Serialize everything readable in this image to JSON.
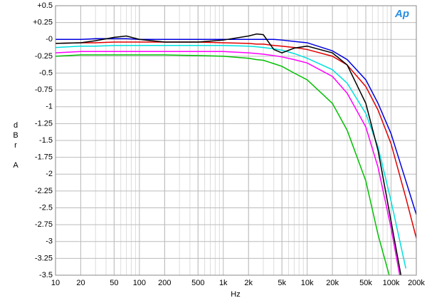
{
  "chart_data": {
    "type": "line",
    "xlabel": "Hz",
    "ylabel": "dBr A",
    "logo": "Ap",
    "xscale": "log",
    "grid": true,
    "xlim": [
      10,
      200000
    ],
    "ylim": [
      -3.5,
      0.5
    ],
    "xticks": [
      10,
      20,
      50,
      100,
      200,
      500,
      {
        "value": 1000,
        "label": "1k"
      },
      {
        "value": 2000,
        "label": "2k"
      },
      {
        "value": 5000,
        "label": "5k"
      },
      {
        "value": 10000,
        "label": "10k"
      },
      {
        "value": 20000,
        "label": "20k"
      },
      {
        "value": 50000,
        "label": "50k"
      },
      {
        "value": 100000,
        "label": "100k"
      },
      {
        "value": 200000,
        "label": "200k"
      }
    ],
    "yticks": [
      {
        "value": 0.5,
        "label": "+0.5"
      },
      {
        "value": 0.25,
        "label": "+0.25"
      },
      {
        "value": 0,
        "label": "-0"
      },
      -0.25,
      -0.5,
      -0.75,
      -1,
      -1.25,
      -1.5,
      -1.75,
      -2,
      -2.25,
      -2.5,
      -2.75,
      -3,
      -3.25,
      -3.5
    ],
    "x": [
      10,
      20,
      30,
      50,
      70,
      100,
      200,
      500,
      1000,
      2000,
      2500,
      3000,
      4000,
      5000,
      7000,
      10000,
      20000,
      30000,
      50000,
      70000,
      100000,
      150000,
      200000
    ],
    "series": [
      {
        "color": "#00c000",
        "values": [
          -0.25,
          -0.23,
          -0.23,
          -0.23,
          -0.23,
          -0.23,
          -0.23,
          -0.24,
          -0.25,
          -0.28,
          -0.3,
          -0.31,
          -0.36,
          -0.4,
          -0.5,
          -0.6,
          -0.95,
          -1.35,
          -2.1,
          -2.9,
          -3.6,
          null,
          null
        ]
      },
      {
        "color": "#ff00ff",
        "values": [
          -0.2,
          -0.18,
          -0.18,
          -0.18,
          -0.18,
          -0.18,
          -0.18,
          -0.18,
          -0.18,
          -0.2,
          -0.21,
          -0.22,
          -0.24,
          -0.26,
          -0.3,
          -0.35,
          -0.55,
          -0.8,
          -1.3,
          -1.9,
          -2.8,
          -4.0,
          null
        ]
      },
      {
        "color": "#00e0e0",
        "values": [
          -0.12,
          -0.1,
          -0.1,
          -0.09,
          -0.09,
          -0.09,
          -0.09,
          -0.09,
          -0.09,
          -0.1,
          -0.11,
          -0.12,
          -0.14,
          -0.16,
          -0.21,
          -0.28,
          -0.45,
          -0.65,
          -1.1,
          -1.6,
          -2.4,
          -3.4,
          null
        ]
      },
      {
        "color": "#e00000",
        "values": [
          -0.06,
          -0.05,
          -0.05,
          -0.04,
          -0.04,
          -0.04,
          -0.04,
          -0.04,
          -0.05,
          -0.06,
          -0.07,
          -0.07,
          -0.09,
          -0.1,
          -0.12,
          -0.15,
          -0.25,
          -0.38,
          -0.7,
          -1.05,
          -1.55,
          -2.35,
          -2.95
        ]
      },
      {
        "color": "#0000e0",
        "values": [
          0,
          0,
          0.01,
          0.01,
          0.01,
          0,
          0,
          0,
          0,
          0,
          0,
          0,
          0,
          -0.01,
          -0.03,
          -0.05,
          -0.17,
          -0.3,
          -0.6,
          -0.95,
          -1.4,
          -2.1,
          -2.6
        ]
      },
      {
        "color": "#000000",
        "values": [
          -0.06,
          -0.05,
          -0.02,
          0.03,
          0.05,
          0,
          -0.04,
          -0.04,
          -0.01,
          0.05,
          0.08,
          0.07,
          -0.15,
          -0.2,
          -0.13,
          -0.1,
          -0.2,
          -0.38,
          -0.95,
          -1.65,
          -2.7,
          -3.9,
          null
        ]
      }
    ]
  }
}
